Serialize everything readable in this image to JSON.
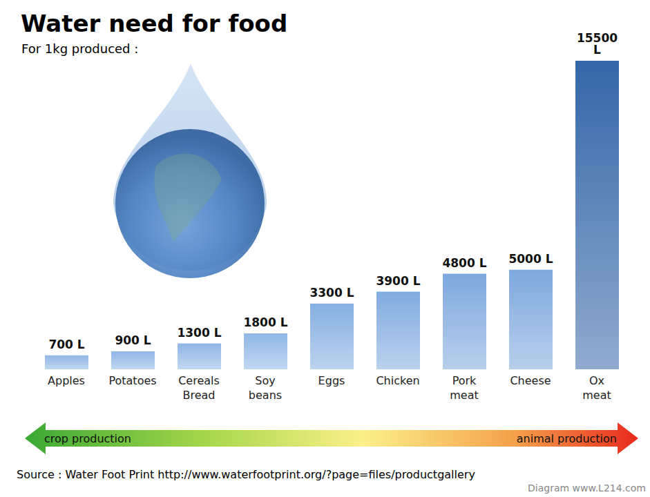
{
  "chart_data": {
    "type": "bar",
    "title": "Water need for food",
    "subtitle": "For 1kg produced :",
    "categories": [
      "Apples",
      "Potatoes",
      "Cereals Bread",
      "Soy beans",
      "Eggs",
      "Chicken",
      "Pork meat",
      "Cheese",
      "Ox meat"
    ],
    "values": [
      700,
      900,
      1300,
      1800,
      3300,
      3900,
      4800,
      5000,
      15500
    ],
    "value_labels": [
      "700 L",
      "900 L",
      "1300 L",
      "1800 L",
      "3300 L",
      "3900 L",
      "4800 L",
      "5000 L",
      "15500 L"
    ],
    "colors": [
      "#8fb6e6",
      "#8fb6e6",
      "#8fb6e6",
      "#8fb6e6",
      "#86afe2",
      "#82abe0",
      "#7ea8de",
      "#7ea8de",
      "#3566a8"
    ],
    "data_labels": true,
    "tick_labels": "x",
    "annotations": [
      "crop production",
      "animal production"
    ],
    "source": "Source : Water Foot Print http://www.waterfootprint.org/?page=files/productgallery",
    "credit": "Diagram www.L214.com"
  }
}
